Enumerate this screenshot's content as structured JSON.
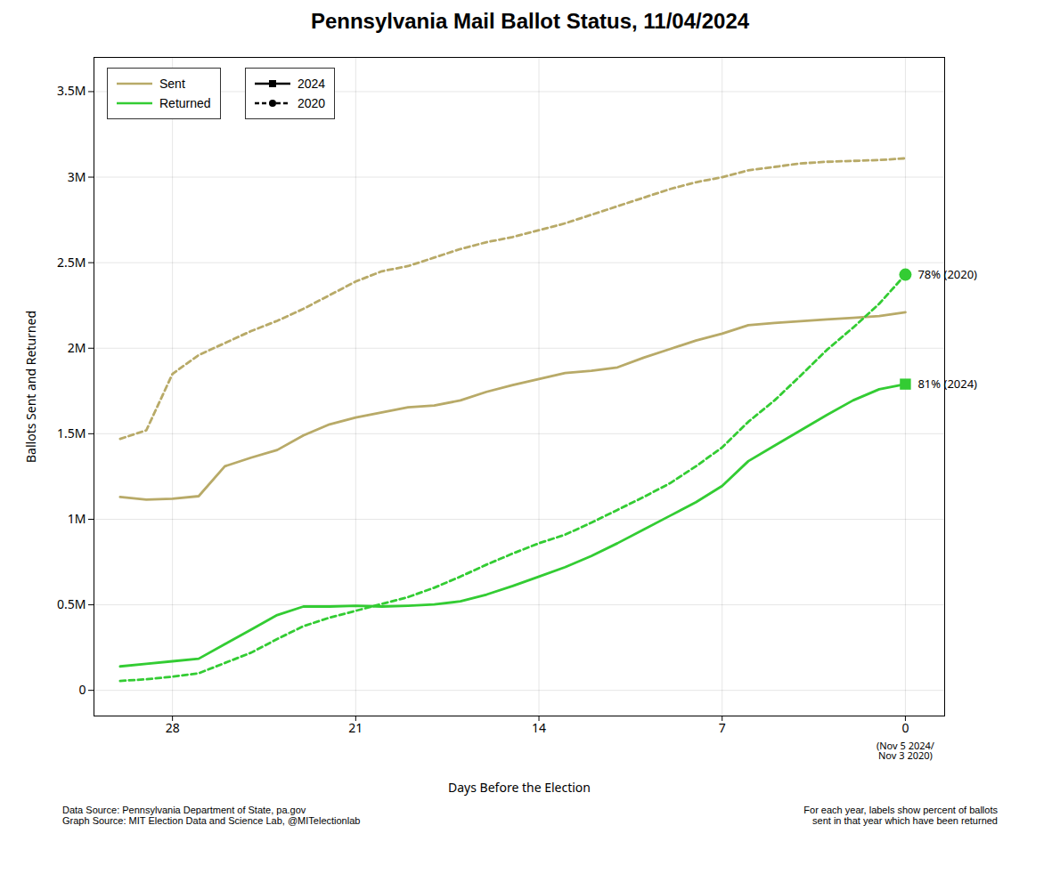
{
  "chart_data": {
    "type": "line",
    "title": "Pennsylvania Mail Ballot Status, 11/04/2024",
    "xlabel": "Days Before the Election",
    "ylabel": "Ballots Sent and Returned",
    "footnotes": [
      "Data Source: Pennsylvania Department of State, pa.gov\nGraph Source: MIT Election Data and Science Lab, @MITelectionlab",
      "For each year, labels show percent of ballots\nsent in that year which have been returned"
    ],
    "x": [
      30,
      29,
      28,
      27,
      26,
      25,
      24,
      23,
      22,
      21,
      20,
      19,
      18,
      17,
      16,
      15,
      14,
      13,
      12,
      11,
      10,
      9,
      8,
      7,
      6,
      5,
      4,
      3,
      2,
      1,
      0
    ],
    "xlim": [
      31,
      -1.5
    ],
    "xticks": [
      0,
      7,
      14,
      21,
      28
    ],
    "ylim": [
      -150000,
      3700000
    ],
    "yticks": [
      0,
      {
        "value": 500000,
        "label": "0.5M"
      },
      {
        "value": 1000000,
        "label": "1M"
      },
      {
        "value": 1500000,
        "label": "1.5M"
      },
      {
        "value": 2000000,
        "label": "2M"
      },
      {
        "value": 2500000,
        "label": "2.5M"
      },
      {
        "value": 3000000,
        "label": "3M"
      },
      {
        "value": 3500000,
        "label": "3.5M"
      }
    ],
    "grid": true,
    "legend": "upper left",
    "series": [
      {
        "name": "Sent",
        "group": "2024",
        "color": "#b8aa68",
        "line_style": "solid",
        "values": [
          1130000,
          1115000,
          1120000,
          1135000,
          1310000,
          1360000,
          1405000,
          1490000,
          1555000,
          1595000,
          1625000,
          1655000,
          1665000,
          1695000,
          1745000,
          1785000,
          1820000,
          1855000,
          1868000,
          1888000,
          1945000,
          1995000,
          2045000,
          2085000,
          2135000,
          2148000,
          2158000,
          2168000,
          2178000,
          2188000,
          2210000
        ]
      },
      {
        "name": "Sent",
        "group": "2020",
        "color": "#b8aa68",
        "line_style": "dashed",
        "values": [
          1470000,
          1520000,
          1850000,
          1960000,
          2030000,
          2100000,
          2160000,
          2230000,
          2310000,
          2390000,
          2450000,
          2480000,
          2530000,
          2580000,
          2620000,
          2650000,
          2690000,
          2730000,
          2780000,
          2830000,
          2880000,
          2930000,
          2970000,
          3000000,
          3040000,
          3060000,
          3080000,
          3090000,
          3095000,
          3100000,
          3110000
        ]
      },
      {
        "name": "Returned",
        "group": "2024",
        "color": "#33cc33",
        "line_style": "solid",
        "values": [
          140000,
          155000,
          170000,
          185000,
          270000,
          355000,
          440000,
          490000,
          490000,
          495000,
          490000,
          495000,
          502000,
          520000,
          560000,
          610000,
          665000,
          720000,
          785000,
          860000,
          940000,
          1020000,
          1100000,
          1195000,
          1340000,
          1430000,
          1520000,
          1610000,
          1695000,
          1760000,
          1790000
        ]
      },
      {
        "name": "Returned",
        "group": "2020",
        "color": "#33cc33",
        "line_style": "dashed",
        "values": [
          55000,
          65000,
          80000,
          100000,
          160000,
          220000,
          300000,
          375000,
          425000,
          465000,
          505000,
          545000,
          600000,
          665000,
          735000,
          800000,
          860000,
          910000,
          980000,
          1055000,
          1130000,
          1210000,
          1310000,
          1420000,
          1570000,
          1695000,
          1840000,
          1990000,
          2120000,
          2260000,
          2430000
        ]
      }
    ],
    "annotations": [
      {
        "text": "78% (2020)",
        "x": 0,
        "y": 2430000,
        "group": "2020",
        "marker": "circle",
        "color": "#33cc33"
      },
      {
        "text": "81% (2024)",
        "x": 0,
        "y": 1790000,
        "group": "2024",
        "marker": "square",
        "color": "#33cc33"
      }
    ],
    "x_note": {
      "x": 0,
      "text": "(Nov 5 2024/\nNov 3 2020)"
    }
  }
}
